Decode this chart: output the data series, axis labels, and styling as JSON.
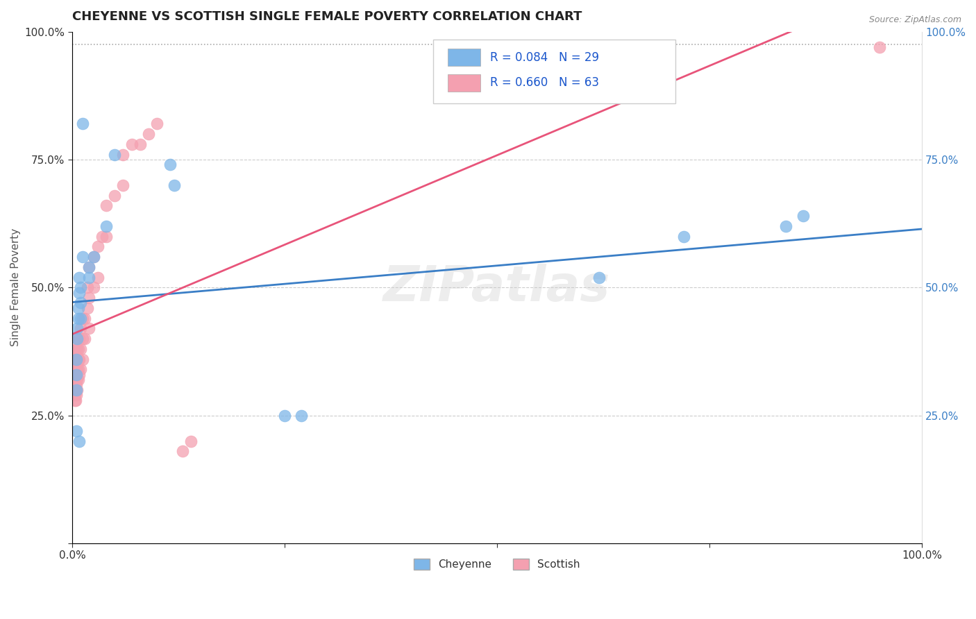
{
  "title": "CHEYENNE VS SCOTTISH SINGLE FEMALE POVERTY CORRELATION CHART",
  "source": "Source: ZipAtlas.com",
  "ylabel": "Single Female Poverty",
  "xlim": [
    0.0,
    1.0
  ],
  "ylim": [
    0.0,
    1.0
  ],
  "cheyenne_color": "#7EB6E8",
  "scottish_color": "#F4A0B0",
  "cheyenne_line_color": "#3A7EC6",
  "scottish_line_color": "#E8547A",
  "cheyenne_R": 0.084,
  "cheyenne_N": 29,
  "scottish_R": 0.66,
  "scottish_N": 63,
  "watermark": "ZIPatlas",
  "legend_cheyenne": "Cheyenne",
  "legend_scottish": "Scottish",
  "right_tick_color": "#3A7EC6",
  "cheyenne_x": [
    0.005,
    0.005,
    0.005,
    0.006,
    0.006,
    0.007,
    0.007,
    0.008,
    0.008,
    0.01,
    0.01,
    0.01,
    0.012,
    0.012,
    0.02,
    0.02,
    0.025,
    0.04,
    0.05,
    0.115,
    0.12,
    0.25,
    0.27,
    0.62,
    0.72,
    0.84,
    0.86,
    0.005,
    0.008
  ],
  "cheyenne_y": [
    0.3,
    0.33,
    0.36,
    0.4,
    0.42,
    0.44,
    0.46,
    0.49,
    0.52,
    0.44,
    0.47,
    0.5,
    0.56,
    0.82,
    0.52,
    0.54,
    0.56,
    0.62,
    0.76,
    0.74,
    0.7,
    0.25,
    0.25,
    0.52,
    0.6,
    0.62,
    0.64,
    0.22,
    0.2
  ],
  "scottish_x": [
    0.003,
    0.003,
    0.003,
    0.003,
    0.003,
    0.003,
    0.003,
    0.003,
    0.003,
    0.003,
    0.004,
    0.004,
    0.004,
    0.004,
    0.004,
    0.004,
    0.005,
    0.005,
    0.005,
    0.005,
    0.006,
    0.006,
    0.006,
    0.006,
    0.006,
    0.006,
    0.007,
    0.007,
    0.007,
    0.007,
    0.008,
    0.008,
    0.008,
    0.01,
    0.01,
    0.01,
    0.012,
    0.012,
    0.012,
    0.015,
    0.015,
    0.018,
    0.018,
    0.02,
    0.02,
    0.02,
    0.025,
    0.025,
    0.03,
    0.03,
    0.035,
    0.04,
    0.04,
    0.05,
    0.06,
    0.06,
    0.07,
    0.08,
    0.09,
    0.1,
    0.13,
    0.14,
    0.95
  ],
  "scottish_y": [
    0.28,
    0.29,
    0.3,
    0.31,
    0.32,
    0.33,
    0.34,
    0.35,
    0.36,
    0.37,
    0.28,
    0.3,
    0.32,
    0.34,
    0.36,
    0.38,
    0.29,
    0.31,
    0.33,
    0.35,
    0.3,
    0.32,
    0.34,
    0.36,
    0.38,
    0.4,
    0.32,
    0.34,
    0.36,
    0.38,
    0.33,
    0.36,
    0.4,
    0.34,
    0.38,
    0.42,
    0.36,
    0.4,
    0.44,
    0.4,
    0.44,
    0.46,
    0.5,
    0.42,
    0.48,
    0.54,
    0.5,
    0.56,
    0.52,
    0.58,
    0.6,
    0.6,
    0.66,
    0.68,
    0.7,
    0.76,
    0.78,
    0.78,
    0.8,
    0.82,
    0.18,
    0.2,
    0.97
  ],
  "title_fontsize": 13,
  "label_fontsize": 11,
  "tick_fontsize": 11
}
